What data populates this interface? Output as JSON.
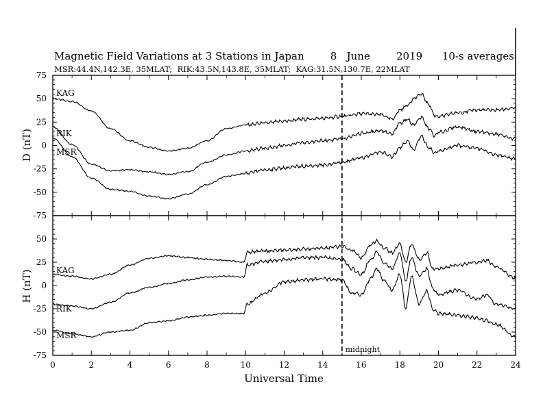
{
  "title": "Magnetic Field Variations at 3 Stations in Japan        8   June        2019      10-s averages",
  "subtitle": "MSR:44.4N,142.3E, 35MLAT;  RIK:43.5N,143.8E, 35MLAT;  KAG:31.5N,130.7E, 22MLAT",
  "chart_data": [
    {
      "type": "line",
      "panel": "top",
      "ylabel": "D (nT)",
      "ylim": [
        -75,
        75
      ],
      "yticks": [
        75,
        50,
        25,
        0,
        -25,
        -50,
        -75
      ],
      "xlim": [
        0,
        24
      ],
      "xticks": [
        0,
        2,
        4,
        6,
        8,
        10,
        12,
        14,
        16,
        18,
        20,
        22,
        24
      ],
      "series": [
        {
          "name": "KAG",
          "x": [
            0,
            1,
            2,
            3,
            4,
            5,
            6,
            7,
            8,
            9,
            10,
            11,
            12,
            13,
            14,
            15,
            16,
            17,
            17.6,
            18,
            18.4,
            18.7,
            19.1,
            19.5,
            19.8,
            20,
            21,
            22,
            23,
            24
          ],
          "values": [
            50,
            47,
            37,
            18,
            5,
            -2,
            -6,
            -3,
            5,
            18,
            22,
            24,
            26,
            28,
            29,
            31,
            34,
            33,
            28,
            38,
            43,
            50,
            55,
            44,
            32,
            31,
            35,
            38,
            38,
            40
          ]
        },
        {
          "name": "RIK",
          "x": [
            0,
            1,
            2,
            3,
            4,
            5,
            6,
            7,
            8,
            9,
            10,
            11,
            12,
            13,
            14,
            15,
            16,
            17,
            17.6,
            18,
            18.4,
            18.7,
            19.1,
            19.5,
            19.8,
            20,
            21,
            22,
            23,
            24
          ],
          "values": [
            20,
            1,
            -20,
            -27,
            -26,
            -28,
            -31,
            -28,
            -18,
            -10,
            -6,
            -3,
            0,
            3,
            5,
            7,
            13,
            16,
            12,
            24,
            28,
            22,
            30,
            18,
            10,
            14,
            20,
            15,
            12,
            7
          ]
        },
        {
          "name": "MSR",
          "x": [
            0,
            1,
            2,
            3,
            4,
            5,
            6,
            7,
            8,
            9,
            10,
            11,
            12,
            13,
            14,
            15,
            16,
            17,
            17.6,
            18,
            18.4,
            18.7,
            19.1,
            19.5,
            19.8,
            20,
            21,
            22,
            23,
            24
          ],
          "values": [
            8,
            -12,
            -35,
            -47,
            -49,
            -54,
            -57,
            -52,
            -42,
            -33,
            -30,
            -26,
            -24,
            -22,
            -21,
            -18,
            -13,
            -7,
            -12,
            -2,
            5,
            -5,
            10,
            -2,
            -8,
            -6,
            0,
            -3,
            -10,
            -14
          ]
        }
      ]
    },
    {
      "type": "line",
      "panel": "bottom",
      "ylabel": "H (nT)",
      "xlabel": "Universal Time",
      "ylim": [
        -75,
        75
      ],
      "yticks": [
        50,
        25,
        0,
        -25,
        -50,
        -75
      ],
      "xlim": [
        0,
        24
      ],
      "xticks": [
        0,
        2,
        4,
        6,
        8,
        10,
        12,
        14,
        16,
        18,
        20,
        22,
        24
      ],
      "series": [
        {
          "name": "KAG",
          "x": [
            0,
            1,
            2,
            3,
            4,
            5,
            6,
            7,
            8,
            9,
            9.9,
            10.1,
            11,
            12,
            13,
            14,
            15,
            15.5,
            16,
            16.5,
            16.8,
            17.2,
            17.6,
            18,
            18.3,
            18.6,
            19,
            19.4,
            19.7,
            20,
            21,
            22,
            22.5,
            23,
            24
          ],
          "values": [
            12,
            10,
            7,
            12,
            22,
            29,
            32,
            30,
            28,
            27,
            25,
            36,
            37,
            38,
            39,
            40,
            42,
            38,
            30,
            44,
            48,
            40,
            35,
            45,
            25,
            44,
            28,
            35,
            18,
            18,
            22,
            25,
            27,
            20,
            8
          ]
        },
        {
          "name": "RIK",
          "x": [
            0,
            1,
            2,
            3,
            4,
            5,
            6,
            7,
            8,
            9,
            9.9,
            10.1,
            11,
            12,
            13,
            14,
            15,
            15.5,
            16,
            16.5,
            16.8,
            17.2,
            17.6,
            18,
            18.3,
            18.6,
            19,
            19.4,
            19.7,
            20,
            21,
            22,
            22.5,
            23,
            24
          ],
          "values": [
            -20,
            -22,
            -25,
            -18,
            -8,
            -2,
            2,
            6,
            9,
            10,
            9,
            22,
            26,
            28,
            30,
            30,
            28,
            18,
            12,
            28,
            36,
            24,
            18,
            35,
            5,
            30,
            10,
            18,
            -3,
            -10,
            -5,
            -15,
            -10,
            -20,
            -25
          ]
        },
        {
          "name": "MSR",
          "x": [
            0,
            1,
            2,
            3,
            4,
            5,
            6,
            7,
            8,
            9,
            9.9,
            10.1,
            11,
            12,
            13,
            14,
            15,
            15.5,
            16,
            16.5,
            16.8,
            17.2,
            17.6,
            18,
            18.3,
            18.6,
            19,
            19.4,
            19.7,
            20,
            21,
            22,
            22.5,
            23,
            24
          ],
          "values": [
            -48,
            -52,
            -55,
            -50,
            -48,
            -40,
            -38,
            -34,
            -32,
            -30,
            -30,
            -20,
            -8,
            4,
            6,
            7,
            6,
            -8,
            -10,
            8,
            18,
            5,
            -5,
            12,
            -25,
            10,
            -20,
            -6,
            -25,
            -30,
            -32,
            -35,
            -38,
            -42,
            -55
          ]
        }
      ]
    }
  ],
  "midnight_label": "midnight",
  "midnight_x": 15
}
